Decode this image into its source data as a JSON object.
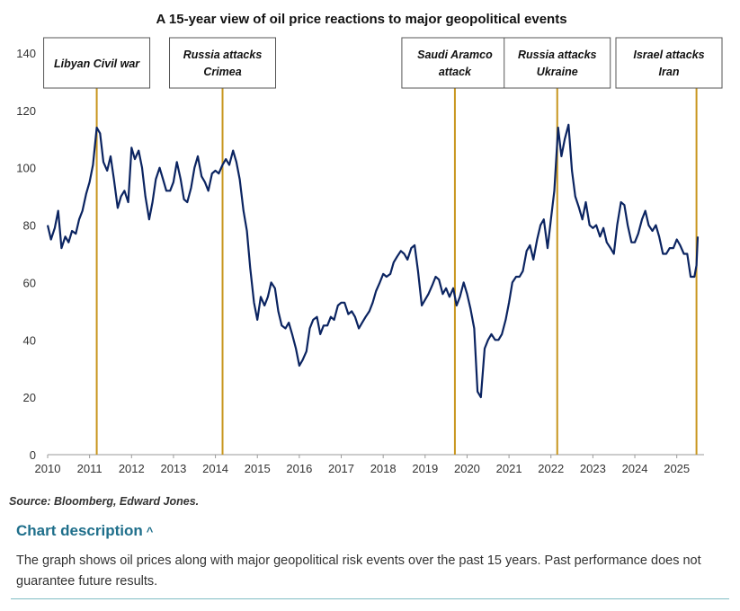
{
  "chart_data": {
    "type": "line",
    "title": "A 15-year view of oil price reactions to major geopolitical events",
    "xlabel": "",
    "ylabel": "",
    "xlim": [
      2010,
      2025.65
    ],
    "ylim": [
      0,
      140
    ],
    "x_ticks": [
      "2010",
      "2011",
      "2012",
      "2013",
      "2014",
      "2015",
      "2016",
      "2017",
      "2018",
      "2019",
      "2020",
      "2021",
      "2022",
      "2023",
      "2024",
      "2025"
    ],
    "y_ticks": [
      "0",
      "20",
      "40",
      "60",
      "80",
      "100",
      "120",
      "140"
    ],
    "grid": false,
    "colors": {
      "line": "#0b2461",
      "event": "#c8961e",
      "box_border": "#555555"
    },
    "series": [
      {
        "x": [
          2010.0,
          2010.08,
          2010.17,
          2010.25,
          2010.33,
          2010.42,
          2010.5,
          2010.58,
          2010.67,
          2010.75,
          2010.83,
          2010.92,
          2011.0,
          2011.08,
          2011.17,
          2011.25,
          2011.33,
          2011.42,
          2011.5,
          2011.58,
          2011.67,
          2011.75,
          2011.83,
          2011.92,
          2012.0,
          2012.08,
          2012.17,
          2012.25,
          2012.33,
          2012.42,
          2012.5,
          2012.58,
          2012.67,
          2012.75,
          2012.83,
          2012.92,
          2013.0,
          2013.08,
          2013.17,
          2013.25,
          2013.33,
          2013.42,
          2013.5,
          2013.58,
          2013.67,
          2013.75,
          2013.83,
          2013.92,
          2014.0,
          2014.08,
          2014.17,
          2014.25,
          2014.33,
          2014.42,
          2014.5,
          2014.58,
          2014.67,
          2014.75,
          2014.83,
          2014.92,
          2015.0,
          2015.08,
          2015.17,
          2015.25,
          2015.33,
          2015.42,
          2015.5,
          2015.58,
          2015.67,
          2015.75,
          2015.83,
          2015.92,
          2016.0,
          2016.08,
          2016.17,
          2016.25,
          2016.33,
          2016.42,
          2016.5,
          2016.58,
          2016.67,
          2016.75,
          2016.83,
          2016.92,
          2017.0,
          2017.08,
          2017.17,
          2017.25,
          2017.33,
          2017.42,
          2017.5,
          2017.58,
          2017.67,
          2017.75,
          2017.83,
          2017.92,
          2018.0,
          2018.08,
          2018.17,
          2018.25,
          2018.33,
          2018.42,
          2018.5,
          2018.58,
          2018.67,
          2018.75,
          2018.83,
          2018.92,
          2019.0,
          2019.08,
          2019.17,
          2019.25,
          2019.33,
          2019.42,
          2019.5,
          2019.58,
          2019.67,
          2019.75,
          2019.83,
          2019.92,
          2020.0,
          2020.08,
          2020.17,
          2020.25,
          2020.33,
          2020.42,
          2020.5,
          2020.58,
          2020.67,
          2020.75,
          2020.83,
          2020.92,
          2021.0,
          2021.08,
          2021.17,
          2021.25,
          2021.33,
          2021.42,
          2021.5,
          2021.58,
          2021.67,
          2021.75,
          2021.83,
          2021.92,
          2022.0,
          2022.08,
          2022.17,
          2022.25,
          2022.33,
          2022.42,
          2022.5,
          2022.58,
          2022.67,
          2022.75,
          2022.83,
          2022.92,
          2023.0,
          2023.08,
          2023.17,
          2023.25,
          2023.33,
          2023.42,
          2023.5,
          2023.58,
          2023.67,
          2023.75,
          2023.83,
          2023.92,
          2024.0,
          2024.08,
          2024.17,
          2024.25,
          2024.33,
          2024.42,
          2024.5,
          2024.58,
          2024.67,
          2024.75,
          2024.83,
          2024.92,
          2025.0,
          2025.08,
          2025.17,
          2025.25,
          2025.33,
          2025.42,
          2025.47,
          2025.5
        ],
        "values": [
          80,
          75,
          79,
          85,
          72,
          76,
          74,
          78,
          77,
          82,
          85,
          91,
          95,
          101,
          114,
          112,
          102,
          99,
          104,
          96,
          86,
          90,
          92,
          88,
          107,
          103,
          106,
          100,
          90,
          82,
          88,
          96,
          100,
          96,
          92,
          92,
          95,
          102,
          96,
          89,
          88,
          93,
          100,
          104,
          97,
          95,
          92,
          98,
          99,
          98,
          101,
          103,
          101,
          106,
          102,
          96,
          85,
          78,
          65,
          53,
          47,
          55,
          52,
          55,
          60,
          58,
          50,
          45,
          44,
          46,
          42,
          37,
          31,
          33,
          36,
          44,
          47,
          48,
          42,
          45,
          45,
          48,
          47,
          52,
          53,
          53,
          49,
          50,
          48,
          44,
          46,
          48,
          50,
          53,
          57,
          60,
          63,
          62,
          63,
          67,
          69,
          71,
          70,
          68,
          72,
          73,
          64,
          52,
          54,
          56,
          59,
          62,
          61,
          56,
          58,
          55,
          58,
          52,
          55,
          60,
          56,
          51,
          44,
          22,
          20,
          37,
          40,
          42,
          40,
          40,
          42,
          47,
          53,
          60,
          62,
          62,
          64,
          71,
          73,
          68,
          75,
          80,
          82,
          72,
          82,
          92,
          114,
          104,
          110,
          115,
          99,
          90,
          86,
          82,
          88,
          80,
          79,
          80,
          76,
          79,
          74,
          72,
          70,
          80,
          88,
          87,
          80,
          74,
          74,
          77,
          82,
          85,
          80,
          78,
          80,
          76,
          70,
          70,
          72,
          72,
          75,
          73,
          70,
          70,
          62,
          62,
          66,
          76
        ]
      }
    ],
    "events": [
      {
        "x": 2011.17,
        "label_line1": "Libyan Civil war",
        "label_line2": ""
      },
      {
        "x": 2014.17,
        "label_line1": "Russia attacks",
        "label_line2": "Crimea"
      },
      {
        "x": 2019.71,
        "label_line1": "Saudi Aramco",
        "label_line2": "attack"
      },
      {
        "x": 2022.15,
        "label_line1": "Russia attacks",
        "label_line2": "Ukraine"
      },
      {
        "x": 2025.47,
        "label_line1": "Israel attacks",
        "label_line2": "Iran"
      }
    ]
  },
  "source": "Source: Bloomberg, Edward Jones.",
  "description": {
    "toggle_label": "Chart description",
    "toggle_icon": "chevron-up-icon",
    "text": "The graph shows oil prices along with major geopolitical risk events over the past 15 years. Past performance does not guarantee future results."
  }
}
